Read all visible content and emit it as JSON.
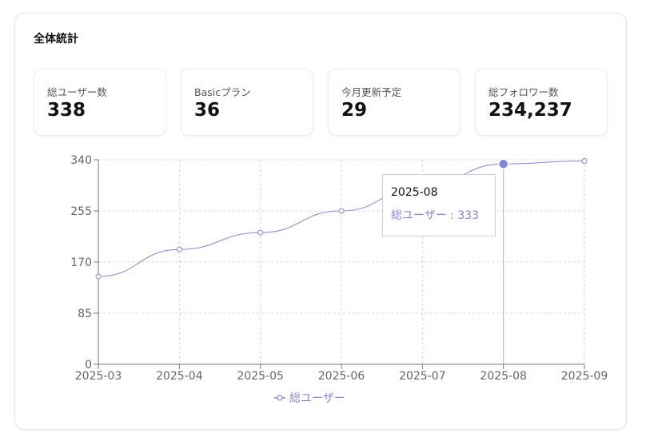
{
  "panel": {
    "title": "全体統計"
  },
  "stats": [
    {
      "label": "総ユーザー数",
      "value": "338"
    },
    {
      "label": "Basicプラン",
      "value": "36"
    },
    {
      "label": "今月更新予定",
      "value": "29"
    },
    {
      "label": "総フォロワー数",
      "value": "234,237"
    }
  ],
  "tooltip": {
    "label": "2025-08",
    "series_name": "総ユーザー",
    "separator": " : ",
    "value": "333"
  },
  "chart_data": {
    "type": "line",
    "x": [
      "2025-03",
      "2025-04",
      "2025-05",
      "2025-06",
      "2025-07",
      "2025-08",
      "2025-09"
    ],
    "series": [
      {
        "name": "総ユーザー",
        "values": [
          146,
          191,
          219,
          255,
          296,
          333,
          338
        ],
        "color": "#8884d8"
      }
    ],
    "yticks": [
      0,
      85,
      170,
      255,
      340
    ],
    "ylim": [
      0,
      340
    ],
    "grid": true,
    "legend": "bottom-center",
    "active_index": 5
  }
}
